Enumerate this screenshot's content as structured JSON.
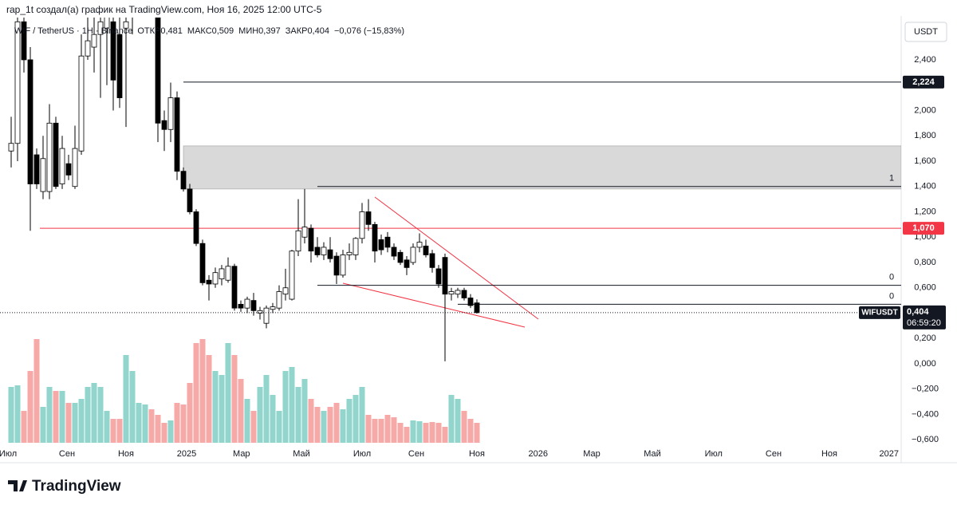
{
  "header": {
    "credit": "rap_1t создал(а) график на TradingView.com, Ноя 16, 2025 12:00 UTC-5",
    "symbol": "WIF / TetherUS · 1Н · Binance",
    "ohlc": [
      "ОТКР0,481",
      "МАКС0,509",
      "МИН0,397",
      "ЗАКР0,404",
      "−0,076 (−15,83%)"
    ]
  },
  "chart_data": {
    "type": "candlestick",
    "currency": "USDT",
    "open": [
      1.68,
      1.74,
      2.7,
      2.4,
      1.65,
      1.36,
      1.36,
      1.9,
      1.42,
      1.58,
      1.4,
      1.68,
      2.43,
      2.5,
      2.6,
      2.65,
      2.7,
      2.6,
      2.65,
      2.8,
      3.0,
      3.3,
      3.6,
      2.8,
      1.92,
      1.85,
      2.1,
      1.52,
      1.38,
      1.2,
      0.95,
      0.66,
      0.63,
      0.67,
      0.66,
      0.77,
      0.47,
      0.44,
      0.5,
      0.4,
      0.32,
      0.43,
      0.44,
      0.55,
      0.51,
      0.89,
      1.0,
      1.07,
      0.92,
      0.86,
      0.9,
      0.85,
      0.7,
      0.86,
      0.86,
      0.99,
      1.2,
      1.1,
      0.98,
      1.0,
      0.92,
      0.88,
      0.82,
      0.8,
      0.92,
      0.93,
      0.87,
      0.75,
      0.84,
      0.55,
      0.55,
      0.58,
      0.52,
      0.481
    ],
    "high": [
      1.95,
      2.9,
      2.9,
      2.5,
      1.7,
      1.8,
      2.05,
      1.95,
      1.8,
      1.65,
      1.88,
      2.6,
      2.8,
      2.9,
      2.9,
      2.9,
      2.9,
      2.75,
      2.9,
      3.2,
      3.4,
      3.7,
      3.7,
      3.0,
      2.0,
      2.22,
      2.15,
      1.55,
      1.42,
      1.22,
      0.98,
      0.7,
      0.76,
      0.78,
      0.84,
      0.79,
      0.5,
      0.53,
      0.56,
      0.45,
      0.46,
      0.48,
      0.62,
      0.75,
      0.9,
      1.3,
      1.38,
      1.1,
      1.0,
      0.96,
      1.0,
      0.88,
      0.9,
      0.95,
      1.0,
      1.27,
      1.3,
      1.12,
      1.02,
      1.04,
      0.95,
      0.9,
      0.85,
      0.95,
      1.03,
      0.98,
      0.9,
      0.78,
      0.87,
      0.6,
      0.6,
      0.6,
      0.55,
      0.509
    ],
    "low": [
      1.55,
      1.6,
      2.3,
      1.05,
      1.38,
      1.3,
      1.3,
      1.38,
      1.38,
      1.45,
      1.38,
      1.65,
      2.4,
      2.3,
      2.1,
      2.2,
      2.0,
      2.02,
      1.87,
      2.6,
      2.9,
      3.1,
      3.0,
      1.75,
      1.68,
      1.75,
      1.45,
      1.36,
      1.18,
      0.93,
      0.62,
      0.5,
      0.6,
      0.62,
      0.64,
      0.42,
      0.41,
      0.4,
      0.38,
      0.35,
      0.28,
      0.4,
      0.42,
      0.5,
      0.5,
      0.85,
      0.95,
      0.8,
      0.84,
      0.82,
      0.8,
      0.63,
      0.68,
      0.82,
      0.82,
      0.95,
      1.05,
      0.8,
      0.86,
      0.88,
      0.82,
      0.78,
      0.7,
      0.78,
      0.88,
      0.84,
      0.72,
      0.6,
      0.02,
      0.5,
      0.52,
      0.5,
      0.44,
      0.397
    ],
    "close": [
      1.74,
      2.7,
      2.4,
      1.42,
      1.42,
      1.62,
      1.9,
      1.4,
      1.7,
      1.49,
      1.7,
      2.43,
      2.55,
      2.6,
      2.7,
      2.75,
      2.24,
      2.1,
      2.7,
      3.0,
      3.3,
      3.6,
      3.2,
      1.9,
      1.85,
      2.1,
      1.52,
      1.38,
      1.2,
      0.95,
      0.64,
      0.63,
      0.72,
      0.75,
      0.77,
      0.44,
      0.44,
      0.51,
      0.42,
      0.42,
      0.44,
      0.45,
      0.57,
      0.6,
      0.89,
      1.05,
      1.08,
      0.89,
      0.86,
      0.92,
      0.83,
      0.7,
      0.86,
      0.88,
      0.99,
      1.2,
      1.1,
      0.89,
      0.9,
      0.92,
      0.85,
      0.8,
      0.76,
      0.92,
      0.96,
      0.86,
      0.76,
      0.63,
      0.55,
      0.57,
      0.58,
      0.52,
      0.46,
      0.404
    ],
    "volume": [
      70,
      72,
      40,
      90,
      130,
      45,
      70,
      65,
      65,
      50,
      50,
      55,
      70,
      75,
      70,
      40,
      30,
      30,
      110,
      90,
      50,
      48,
      42,
      35,
      25,
      28,
      50,
      48,
      75,
      125,
      130,
      110,
      90,
      85,
      125,
      110,
      80,
      55,
      40,
      70,
      85,
      60,
      40,
      90,
      95,
      70,
      80,
      55,
      45,
      40,
      45,
      50,
      42,
      55,
      60,
      70,
      35,
      30,
      30,
      35,
      32,
      25,
      20,
      28,
      27,
      25,
      26,
      25,
      20,
      60,
      55,
      40,
      30,
      25
    ],
    "up_color": "#ffffff",
    "down_color": "#000000",
    "volume_up_color": "#92d5cd",
    "volume_down_color": "#f7a9a7",
    "ylim": [
      -0.636,
      2.746
    ],
    "yticks": [
      {
        "value": 2.4,
        "label": "2,400"
      },
      {
        "value": 2.0,
        "label": "2,000"
      },
      {
        "value": 1.8,
        "label": "1,800"
      },
      {
        "value": 1.6,
        "label": "1,600"
      },
      {
        "value": 1.4,
        "label": "1,400"
      },
      {
        "value": 1.2,
        "label": "1,200"
      },
      {
        "value": 1.0,
        "label": "1,000"
      },
      {
        "value": 0.8,
        "label": "0,800"
      },
      {
        "value": 0.6,
        "label": "0,600"
      },
      {
        "value": 0.2,
        "label": "0,200"
      },
      {
        "value": 0,
        "label": "0,000"
      },
      {
        "value": -0.2,
        "label": "−0,200"
      },
      {
        "value": -0.4,
        "label": "−0,400"
      },
      {
        "value": -0.6,
        "label": "−0,600"
      }
    ],
    "xlim": [
      -1.75,
      139.5
    ],
    "xticks": [
      {
        "value": -0.5,
        "label": "Июл"
      },
      {
        "value": 8.75,
        "label": "Сен"
      },
      {
        "value": 18,
        "label": "Ноя"
      },
      {
        "value": 27.5,
        "label": "2025"
      },
      {
        "value": 36.1,
        "label": "Мар"
      },
      {
        "value": 45.5,
        "label": "Май"
      },
      {
        "value": 55,
        "label": "Июл"
      },
      {
        "value": 63.5,
        "label": "Сен"
      },
      {
        "value": 73,
        "label": "Ноя"
      },
      {
        "value": 82.6,
        "label": "2026"
      },
      {
        "value": 91,
        "label": "Мар"
      },
      {
        "value": 100.5,
        "label": "Май"
      },
      {
        "value": 110.1,
        "label": "Июл"
      },
      {
        "value": 119.5,
        "label": "Сен"
      },
      {
        "value": 128.25,
        "label": "Ноя"
      },
      {
        "value": 137.6,
        "label": "2027"
      }
    ],
    "grid": false,
    "zone": {
      "from": 27,
      "low": 1.38,
      "high": 1.72
    },
    "levels": [
      {
        "value": 2.224,
        "label": "2,224",
        "color": "#131722",
        "from": 27
      },
      {
        "value": 1.07,
        "label": "1,070",
        "color": "#f23645",
        "from": 4.5
      }
    ],
    "fib_levels": [
      {
        "value": 1.4,
        "label": "1",
        "from": 48
      },
      {
        "value": 0.62,
        "label": "0",
        "from": 48
      },
      {
        "value": 0.47,
        "label": "0",
        "from": 70
      }
    ],
    "last_price": {
      "value": 0.404,
      "label": "0,404",
      "symbol": "WIFUSDT",
      "countdown": "06:59:20"
    }
  },
  "footer": {
    "logo": "TradingView"
  }
}
